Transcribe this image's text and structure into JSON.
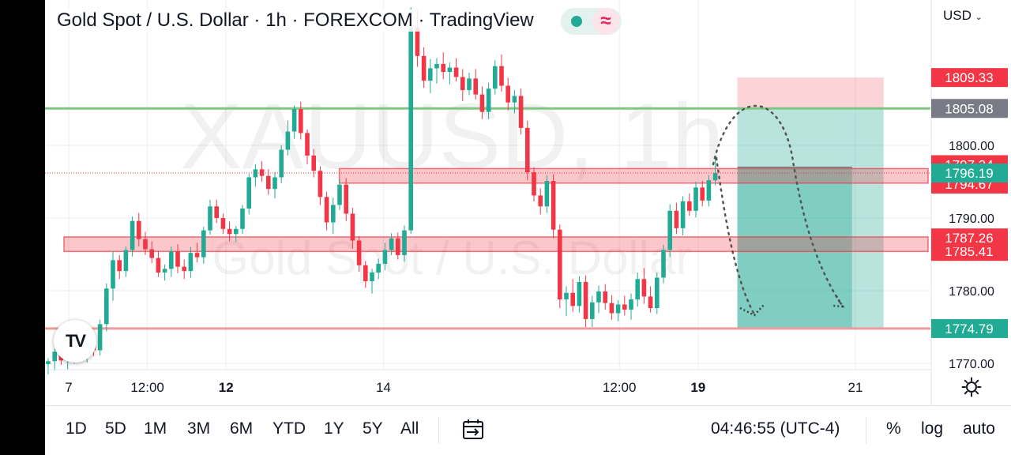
{
  "header": {
    "title": "Gold Spot / U.S. Dollar · 1h · FOREXCOM · TradingView",
    "currency": "USD",
    "currency_icon": "chevron-down-icon",
    "status_icons": [
      "market-open-dot-icon",
      "wave-icon"
    ]
  },
  "watermark": {
    "symbol": "XAUUSD, 1h",
    "name": "Gold Spot / U.S. Dollar"
  },
  "logo": {
    "text": "TV",
    "icon": "tradingview-logo-icon"
  },
  "chart_data": {
    "type": "candlestick",
    "title": "Gold Spot / U.S. Dollar · 1h · FOREXCOM · TradingView",
    "symbol": "XAUUSD",
    "interval": "1h",
    "ylim": [
      1768.5,
      1818.5
    ],
    "y_ticks": [
      "1770.00",
      "1780.00",
      "1790.00",
      "1800.00"
    ],
    "x_ticks": [
      {
        "label": "7",
        "bold": false,
        "x": 0
      },
      {
        "label": "12:00",
        "bold": false,
        "x": 12
      },
      {
        "label": "12",
        "bold": true,
        "x": 24
      },
      {
        "label": "14",
        "bold": false,
        "x": 48
      },
      {
        "label": "12:00",
        "bold": false,
        "x": 84
      },
      {
        "label": "19",
        "bold": true,
        "x": 96
      },
      {
        "label": "21",
        "bold": false,
        "x": 120
      }
    ],
    "price_labels": [
      {
        "value": "1809.33",
        "price": 1809.33,
        "color": "#f23645",
        "hidden": false
      },
      {
        "value": "1805.08",
        "price": 1805.08,
        "color": "#787b86",
        "hidden": false
      },
      {
        "value": "1797.34",
        "price": 1797.34,
        "color": "#f23645",
        "hidden": true
      },
      {
        "value": "1796.19",
        "price": 1796.19,
        "color": "#22ab94",
        "hidden": false
      },
      {
        "value": "1794.67",
        "price": 1794.67,
        "color": "#f23645",
        "hidden": true
      },
      {
        "value": "1787.26",
        "price": 1787.26,
        "color": "#f23645",
        "hidden": false
      },
      {
        "value": "1785.41",
        "price": 1785.41,
        "color": "#f23645",
        "hidden": true
      },
      {
        "value": "1774.79",
        "price": 1774.79,
        "color": "#22ab94",
        "hidden": false
      }
    ],
    "horizontal_lines": [
      {
        "price": 1805.08,
        "color": "#81c784"
      },
      {
        "price": 1774.79,
        "color": "#ef9a9a"
      }
    ],
    "zones": [
      {
        "top": 1796.8,
        "bottom": 1794.8,
        "x_start": 42,
        "color": "#f23645"
      },
      {
        "top": 1787.4,
        "bottom": 1785.4,
        "x_start": 0,
        "color": "#f23645"
      }
    ],
    "position": {
      "type": "short",
      "x_start": 102,
      "x_end": 124.3,
      "stop": 1809.33,
      "entry": 1805.08,
      "target": 1774.79
    },
    "inner_box": {
      "x_start": 102,
      "x_end": 119.5,
      "top": 1797.0,
      "bottom": 1774.79
    },
    "last_price": 1796.19,
    "candles": [
      [
        1769.9,
        1770.7,
        1768.5,
        1770.3
      ],
      [
        1770.3,
        1772.0,
        1769.0,
        1771.6
      ],
      [
        1771.6,
        1772.4,
        1769.8,
        1770.4
      ],
      [
        1770.4,
        1771.5,
        1769.2,
        1771.0
      ],
      [
        1771.0,
        1772.6,
        1770.0,
        1772.3
      ],
      [
        1772.3,
        1773.1,
        1770.6,
        1771.0
      ],
      [
        1771.0,
        1773.0,
        1770.1,
        1772.5
      ],
      [
        1772.5,
        1773.7,
        1771.0,
        1771.8
      ],
      [
        1771.8,
        1776.0,
        1771.1,
        1775.4
      ],
      [
        1775.4,
        1781.0,
        1774.4,
        1780.3
      ],
      [
        1780.3,
        1785.4,
        1778.6,
        1784.2
      ],
      [
        1784.2,
        1784.9,
        1781.6,
        1782.7
      ],
      [
        1782.7,
        1786.1,
        1781.9,
        1785.6
      ],
      [
        1785.6,
        1790.2,
        1784.7,
        1789.6
      ],
      [
        1789.6,
        1790.7,
        1786.1,
        1787.1
      ],
      [
        1787.1,
        1788.1,
        1784.9,
        1785.7
      ],
      [
        1785.7,
        1786.8,
        1783.8,
        1784.5
      ],
      [
        1784.5,
        1785.5,
        1781.9,
        1782.5
      ],
      [
        1782.5,
        1783.6,
        1781.4,
        1783.0
      ],
      [
        1783.0,
        1786.1,
        1781.9,
        1785.4
      ],
      [
        1785.4,
        1786.4,
        1782.4,
        1783.3
      ],
      [
        1783.3,
        1784.3,
        1781.6,
        1782.7
      ],
      [
        1782.7,
        1786.0,
        1781.8,
        1785.2
      ],
      [
        1785.2,
        1786.6,
        1783.9,
        1784.6
      ],
      [
        1784.6,
        1788.8,
        1783.7,
        1788.3
      ],
      [
        1788.3,
        1792.5,
        1787.7,
        1791.6
      ],
      [
        1791.6,
        1792.5,
        1789.3,
        1790.0
      ],
      [
        1790.0,
        1790.6,
        1787.8,
        1788.5
      ],
      [
        1788.5,
        1789.5,
        1786.8,
        1787.8
      ],
      [
        1787.8,
        1788.9,
        1786.7,
        1788.5
      ],
      [
        1788.5,
        1791.8,
        1787.8,
        1791.3
      ],
      [
        1791.3,
        1796.1,
        1790.5,
        1795.6
      ],
      [
        1795.6,
        1797.4,
        1794.3,
        1796.7
      ],
      [
        1796.7,
        1797.8,
        1795.0,
        1795.8
      ],
      [
        1795.8,
        1796.7,
        1793.2,
        1794.0
      ],
      [
        1794.0,
        1796.3,
        1792.7,
        1795.6
      ],
      [
        1795.6,
        1800.0,
        1794.8,
        1799.4
      ],
      [
        1799.4,
        1803.4,
        1798.6,
        1801.9
      ],
      [
        1801.9,
        1805.5,
        1800.9,
        1805.0
      ],
      [
        1805.0,
        1806.0,
        1800.8,
        1801.7
      ],
      [
        1801.7,
        1802.2,
        1797.4,
        1798.6
      ],
      [
        1798.6,
        1799.5,
        1795.6,
        1796.5
      ],
      [
        1796.5,
        1797.1,
        1791.8,
        1792.9
      ],
      [
        1792.9,
        1793.6,
        1788.3,
        1789.4
      ],
      [
        1789.4,
        1792.8,
        1787.8,
        1791.8
      ],
      [
        1791.8,
        1795.3,
        1791.1,
        1794.6
      ],
      [
        1794.6,
        1795.5,
        1789.6,
        1790.6
      ],
      [
        1790.6,
        1791.4,
        1785.8,
        1786.9
      ],
      [
        1786.9,
        1787.5,
        1782.6,
        1783.5
      ],
      [
        1783.5,
        1784.1,
        1780.4,
        1781.3
      ],
      [
        1781.3,
        1783.0,
        1779.6,
        1782.5
      ],
      [
        1782.5,
        1784.4,
        1781.6,
        1783.7
      ],
      [
        1783.7,
        1786.6,
        1782.8,
        1785.6
      ],
      [
        1785.6,
        1787.9,
        1784.9,
        1787.2
      ],
      [
        1787.2,
        1788.0,
        1784.3,
        1784.9
      ],
      [
        1784.9,
        1789.0,
        1784.0,
        1788.3
      ],
      [
        1788.3,
        1819.0,
        1787.8,
        1816.2
      ],
      [
        1816.2,
        1818.6,
        1810.8,
        1812.3
      ],
      [
        1812.3,
        1813.5,
        1807.9,
        1808.9
      ],
      [
        1808.9,
        1811.9,
        1807.2,
        1810.6
      ],
      [
        1810.6,
        1812.0,
        1808.5,
        1811.2
      ],
      [
        1811.2,
        1812.8,
        1809.1,
        1810.1
      ],
      [
        1810.1,
        1811.4,
        1808.4,
        1810.7
      ],
      [
        1810.7,
        1812.0,
        1808.8,
        1809.4
      ],
      [
        1809.4,
        1810.5,
        1806.1,
        1807.6
      ],
      [
        1807.6,
        1810.0,
        1806.9,
        1809.2
      ],
      [
        1809.2,
        1810.5,
        1806.3,
        1807.0
      ],
      [
        1807.0,
        1808.1,
        1803.6,
        1804.6
      ],
      [
        1804.6,
        1808.6,
        1803.6,
        1807.8
      ],
      [
        1807.8,
        1811.7,
        1807.0,
        1810.9
      ],
      [
        1810.9,
        1812.5,
        1807.4,
        1808.2
      ],
      [
        1808.2,
        1809.3,
        1804.8,
        1805.9
      ],
      [
        1805.9,
        1807.6,
        1804.4,
        1806.8
      ],
      [
        1806.8,
        1807.8,
        1801.5,
        1802.4
      ],
      [
        1802.4,
        1803.4,
        1795.2,
        1796.3
      ],
      [
        1796.3,
        1797.0,
        1792.3,
        1793.1
      ],
      [
        1793.1,
        1794.1,
        1790.5,
        1791.6
      ],
      [
        1791.6,
        1795.9,
        1790.7,
        1795.1
      ],
      [
        1795.1,
        1796.0,
        1787.2,
        1788.4
      ],
      [
        1788.4,
        1789.1,
        1777.6,
        1778.8
      ],
      [
        1778.8,
        1780.6,
        1776.5,
        1779.7
      ],
      [
        1779.7,
        1781.6,
        1777.1,
        1777.9
      ],
      [
        1777.9,
        1782.0,
        1777.0,
        1781.2
      ],
      [
        1781.2,
        1782.1,
        1775.0,
        1776.1
      ],
      [
        1776.1,
        1779.3,
        1775.0,
        1778.4
      ],
      [
        1778.4,
        1780.7,
        1776.9,
        1779.9
      ],
      [
        1779.9,
        1780.9,
        1777.4,
        1778.3
      ],
      [
        1778.3,
        1779.4,
        1776.0,
        1776.9
      ],
      [
        1776.9,
        1778.7,
        1775.8,
        1778.1
      ],
      [
        1778.1,
        1779.3,
        1776.6,
        1777.4
      ],
      [
        1777.4,
        1779.6,
        1776.0,
        1778.8
      ],
      [
        1778.8,
        1782.5,
        1777.8,
        1781.6
      ],
      [
        1781.6,
        1783.1,
        1778.2,
        1779.2
      ],
      [
        1779.2,
        1780.6,
        1777.0,
        1777.6
      ],
      [
        1777.6,
        1782.5,
        1776.8,
        1781.8
      ],
      [
        1781.8,
        1786.3,
        1781.0,
        1785.6
      ],
      [
        1785.6,
        1791.9,
        1784.6,
        1791.0
      ],
      [
        1791.0,
        1792.1,
        1787.8,
        1788.6
      ],
      [
        1788.6,
        1793.0,
        1787.6,
        1792.3
      ],
      [
        1792.3,
        1793.4,
        1790.3,
        1791.0
      ],
      [
        1791.0,
        1795.0,
        1790.1,
        1794.2
      ],
      [
        1794.2,
        1795.1,
        1791.6,
        1792.4
      ],
      [
        1792.4,
        1795.9,
        1791.6,
        1795.2
      ],
      [
        1795.2,
        1798.6,
        1794.5,
        1796.19
      ]
    ]
  },
  "drawings": [
    {
      "type": "dotted-arc",
      "color": "#555555"
    },
    {
      "type": "dotted-arc",
      "color": "#555555"
    }
  ],
  "toolbar": {
    "ranges": [
      "1D",
      "5D",
      "1M",
      "3M",
      "6M",
      "YTD",
      "1Y",
      "5Y",
      "All"
    ],
    "goto_icon": "calendar-arrow-icon",
    "clock": "04:46:55 (UTC-4)",
    "percent": "%",
    "log": "log",
    "auto": "auto",
    "settings_icon": "gear-icon"
  }
}
